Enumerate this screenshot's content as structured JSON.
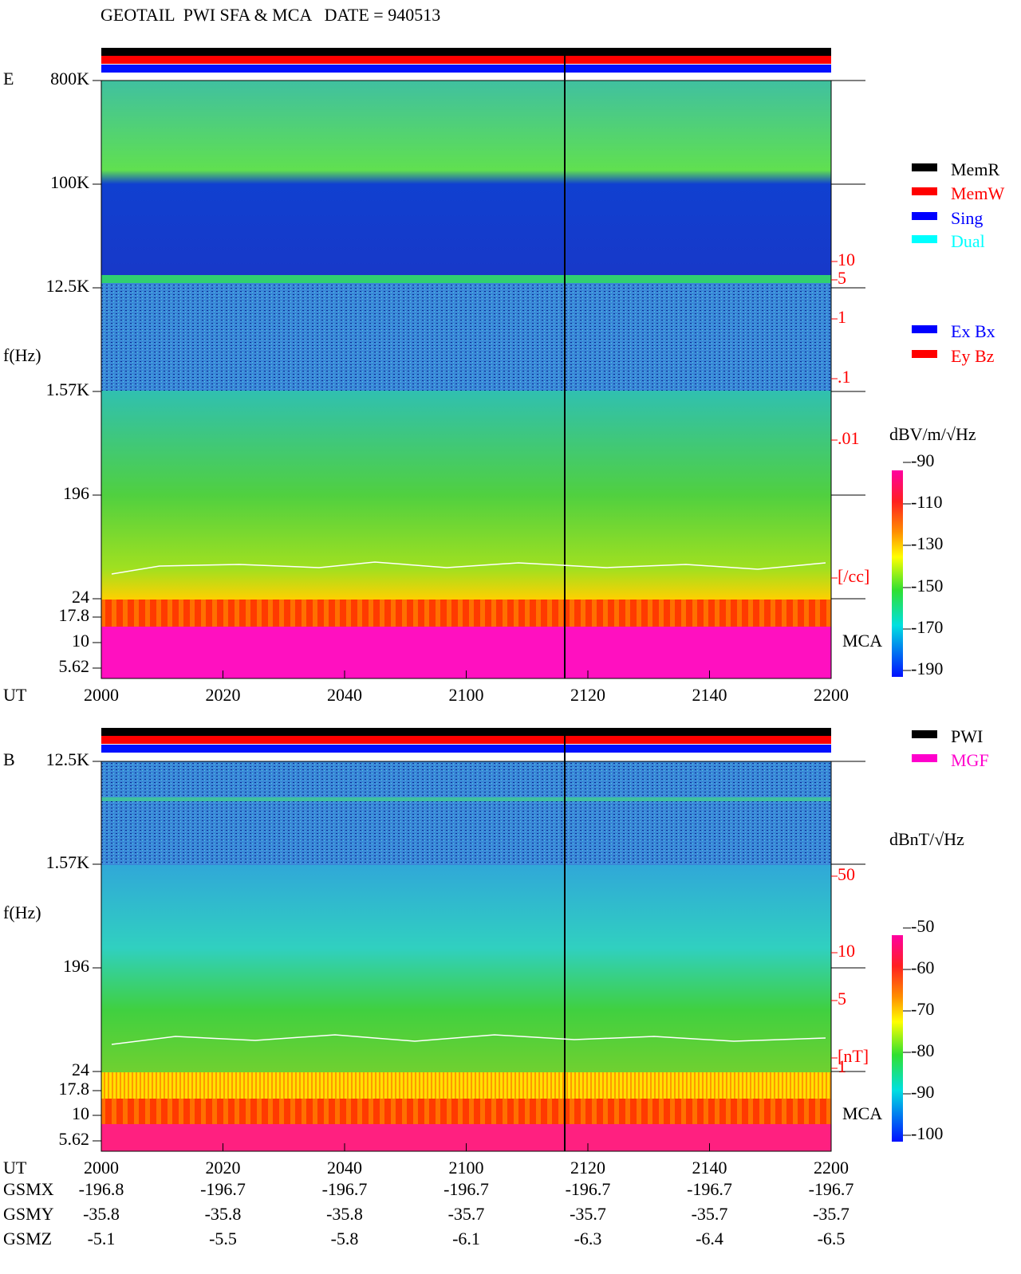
{
  "header": {
    "title": "GEOTAIL  PWI SFA & MCA   DATE = 940513"
  },
  "panels": [
    {
      "label": "E",
      "ylabel": "f(Hz)",
      "yticks": [
        "800K",
        "100K",
        "12.5K",
        "1.57K",
        "196",
        "24",
        "17.8",
        "10",
        "5.62"
      ],
      "right_labels": [
        "10",
        "5",
        "1",
        ".1",
        ".01",
        "[/cc]"
      ],
      "mca": "MCA",
      "legend": [
        "MemR",
        "MemW",
        "Sing",
        "Dual",
        "Ex Bx",
        "Ey Bz"
      ],
      "colorbar": {
        "title": "dBV/m/√Hz",
        "ticks": [
          "-90",
          "-110",
          "-130",
          "-150",
          "-170",
          "-190"
        ]
      }
    },
    {
      "label": "B",
      "ylabel": "f(Hz)",
      "yticks": [
        "12.5K",
        "1.57K",
        "196",
        "24",
        "17.8",
        "10",
        "5.62"
      ],
      "right_labels": [
        "50",
        "10",
        "5",
        "1",
        "[nT]"
      ],
      "mca": "MCA",
      "legend": [
        "PWI",
        "MGF"
      ],
      "colorbar": {
        "title": "dBnT/√Hz",
        "ticks": [
          "-50",
          "-60",
          "-70",
          "-80",
          "-90",
          "-100"
        ]
      }
    }
  ],
  "time_axis": {
    "label": "UT",
    "ticks": [
      "2000",
      "2020",
      "2040",
      "2100",
      "2120",
      "2140",
      "2200"
    ]
  },
  "orbit": [
    {
      "label": "GSMX",
      "values": [
        "-196.8",
        "-196.7",
        "-196.7",
        "-196.7",
        "-196.7",
        "-196.7",
        "-196.7"
      ]
    },
    {
      "label": "GSMY",
      "values": [
        "-35.8",
        "-35.8",
        "-35.8",
        "-35.7",
        "-35.7",
        "-35.7",
        "-35.7"
      ]
    },
    {
      "label": "GSMZ",
      "values": [
        "-5.1",
        "-5.5",
        "-5.8",
        "-6.1",
        "-6.3",
        "-6.4",
        "-6.5"
      ]
    }
  ]
}
